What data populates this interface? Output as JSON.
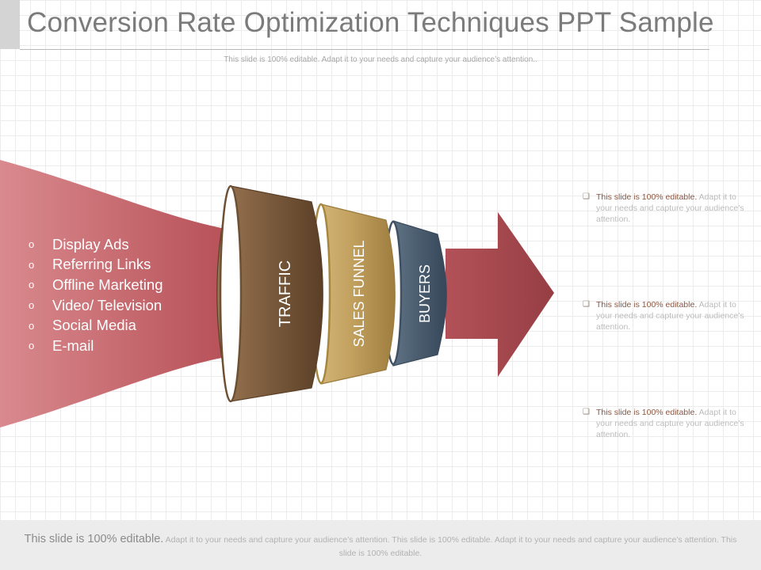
{
  "slide": {
    "title": "Conversion Rate Optimization Techniques PPT Sample",
    "subtitle": "This slide is 100% editable. Adapt it to your needs and capture your audience’s attention.."
  },
  "sources": {
    "bullet_glyph": "o",
    "items": [
      "Display Ads",
      "Referring Links",
      "Offline Marketing",
      "Video/ Television",
      "Social Media",
      "E-mail"
    ]
  },
  "funnel": {
    "stages": [
      "TRAFFIC",
      "SALES FUNNEL",
      "BUYERS"
    ],
    "colors": {
      "inflow": "#b54e55",
      "traffic": "#7a5a3c",
      "sales_funnel": "#c2a05e",
      "buyers": "#4d6072",
      "arrow": "#a64a4f"
    }
  },
  "notes": [
    {
      "bullet": "❑",
      "strong": "This slide is 100% editable.",
      "rest": " Adapt it to your needs and capture your audience’s attention."
    },
    {
      "bullet": "❑",
      "strong": "This slide is 100% editable.",
      "rest": " Adapt it to your needs and capture your audience’s attention."
    },
    {
      "bullet": "❑",
      "strong": "This slide is 100% editable.",
      "rest": " Adapt it to your needs and capture your audience’s attention."
    }
  ],
  "footer": {
    "strong": "This slide is 100% editable.",
    "rest": " Adapt it to your needs and capture your audience’s attention. This slide is 100% editable. Adapt it to your needs and capture your audience’s attention. This slide is 100% editable."
  }
}
